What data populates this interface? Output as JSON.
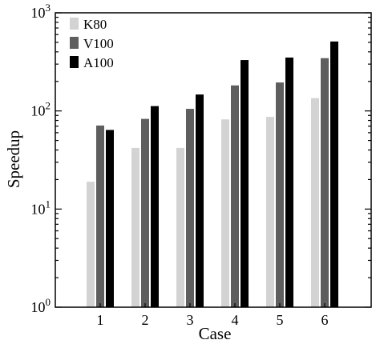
{
  "chart_data": {
    "type": "bar",
    "xlabel": "Case",
    "ylabel": "Speedup",
    "categories": [
      "1",
      "2",
      "3",
      "4",
      "5",
      "6"
    ],
    "y_scale": "log",
    "ylim": [
      1,
      1000
    ],
    "y_ticks": [
      {
        "base": "10",
        "exp": "0",
        "value": 1
      },
      {
        "base": "10",
        "exp": "1",
        "value": 10
      },
      {
        "base": "10",
        "exp": "2",
        "value": 100
      },
      {
        "base": "10",
        "exp": "3",
        "value": 1000
      }
    ],
    "grid": false,
    "legend_position": "top-left",
    "series": [
      {
        "name": "K80",
        "color": "#d3d3d3",
        "values": [
          19,
          42,
          42,
          82,
          87,
          135
        ]
      },
      {
        "name": "V100",
        "color": "#5e5e5e",
        "values": [
          71,
          83,
          105,
          182,
          195,
          345
        ]
      },
      {
        "name": "A100",
        "color": "#000000",
        "values": [
          64,
          112,
          147,
          330,
          350,
          510
        ]
      }
    ]
  }
}
